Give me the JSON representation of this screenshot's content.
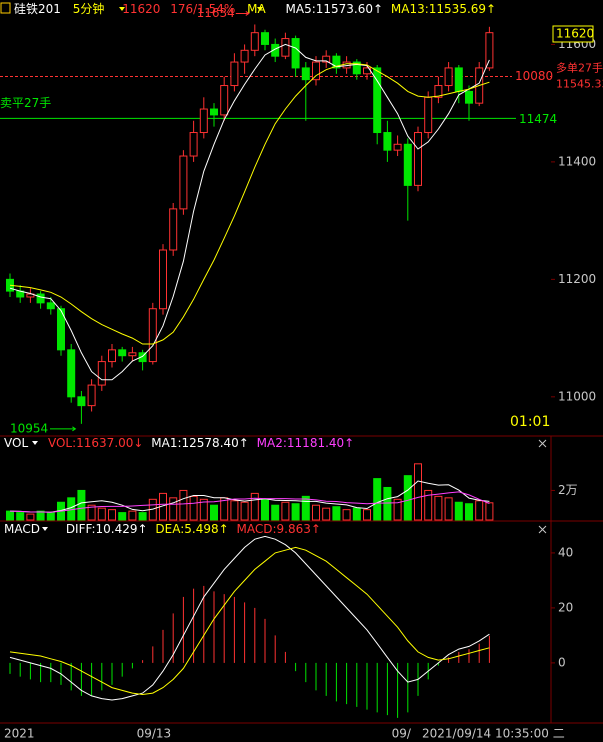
{
  "chart_data": {
    "type": "candlestick",
    "symbol": "硅铁201",
    "period": "5分钟",
    "change": "176/1.54%",
    "indicator": "MA",
    "countdown": "01:01",
    "cursor_time": "2021/09/14 10:35:00 二",
    "up_color": "#ff3232",
    "down_color": "#00e600",
    "categories": [
      "2021",
      null,
      null,
      null,
      null,
      null,
      null,
      null,
      null,
      null,
      null,
      null,
      null,
      "09/13",
      null,
      null,
      null,
      null,
      null,
      null,
      null,
      null,
      null,
      null,
      null,
      null,
      null,
      null,
      null,
      null,
      null,
      null,
      null,
      null,
      null,
      null,
      null,
      null,
      "09/",
      null,
      null,
      null,
      null,
      null,
      null,
      null,
      null,
      null
    ],
    "candles": [
      [
        11200,
        11210,
        11170,
        11180
      ],
      [
        11180,
        11190,
        11160,
        11170
      ],
      [
        11170,
        11185,
        11160,
        11175
      ],
      [
        11175,
        11180,
        11150,
        11160
      ],
      [
        11160,
        11170,
        11140,
        11150
      ],
      [
        11150,
        11155,
        11070,
        11080
      ],
      [
        11080,
        11090,
        10990,
        11000
      ],
      [
        11000,
        11010,
        10954,
        10985
      ],
      [
        10985,
        11030,
        10975,
        11020
      ],
      [
        11020,
        11070,
        11010,
        11060
      ],
      [
        11060,
        11090,
        11050,
        11080
      ],
      [
        11080,
        11085,
        11060,
        11070
      ],
      [
        11070,
        11085,
        11060,
        11075
      ],
      [
        11075,
        11080,
        11045,
        11060
      ],
      [
        11060,
        11160,
        11055,
        11150
      ],
      [
        11150,
        11260,
        11140,
        11250
      ],
      [
        11250,
        11330,
        11240,
        11320
      ],
      [
        11320,
        11420,
        11310,
        11410
      ],
      [
        11410,
        11470,
        11400,
        11450
      ],
      [
        11450,
        11510,
        11440,
        11490
      ],
      [
        11490,
        11500,
        11460,
        11480
      ],
      [
        11480,
        11545,
        11470,
        11530
      ],
      [
        11530,
        11585,
        11520,
        11570
      ],
      [
        11570,
        11600,
        11550,
        11590
      ],
      [
        11590,
        11634,
        11580,
        11620
      ],
      [
        11620,
        11625,
        11590,
        11600
      ],
      [
        11600,
        11610,
        11570,
        11580
      ],
      [
        11580,
        11620,
        11575,
        11610
      ],
      [
        11610,
        11615,
        11545,
        11560
      ],
      [
        11560,
        11570,
        11470,
        11540
      ],
      [
        11540,
        11580,
        11530,
        11570
      ],
      [
        11570,
        11590,
        11560,
        11580
      ],
      [
        11580,
        11585,
        11550,
        11560
      ],
      [
        11560,
        11580,
        11550,
        11570
      ],
      [
        11570,
        11575,
        11540,
        11550
      ],
      [
        11550,
        11570,
        11540,
        11560
      ],
      [
        11560,
        11565,
        11430,
        11450
      ],
      [
        11450,
        11470,
        11400,
        11420
      ],
      [
        11420,
        11445,
        11410,
        11430
      ],
      [
        11430,
        11440,
        11300,
        11360
      ],
      [
        11360,
        11460,
        11350,
        11450
      ],
      [
        11450,
        11520,
        11440,
        11510
      ],
      [
        11510,
        11545,
        11500,
        11530
      ],
      [
        11530,
        11570,
        11520,
        11560
      ],
      [
        11560,
        11565,
        11500,
        11520
      ],
      [
        11520,
        11530,
        11470,
        11500
      ],
      [
        11500,
        11570,
        11495,
        11560
      ],
      [
        11560,
        11630,
        11555,
        11620
      ]
    ],
    "ylim": [
      10935,
      11645
    ],
    "yticks": [
      11600,
      11400,
      11200,
      11000
    ],
    "ma": [
      {
        "name": "MA5:11573.60↑",
        "color": "#ffffff",
        "values": [
          11185,
          11180,
          11176,
          11170,
          11167,
          11147,
          11113,
          11075,
          11043,
          11029,
          11029,
          11043,
          11061,
          11069,
          11087,
          11121,
          11171,
          11231,
          11316,
          11384,
          11430,
          11472,
          11504,
          11532,
          11558,
          11582,
          11592,
          11600,
          11594,
          11578,
          11572,
          11572,
          11562,
          11564,
          11566,
          11564,
          11538,
          11510,
          11482,
          11444,
          11422,
          11434,
          11456,
          11482,
          11514,
          11524,
          11534,
          11573.6
        ]
      },
      {
        "name": "MA13:11535.69↑",
        "color": "#ffff00",
        "values": [
          11190,
          11188,
          11186,
          11182,
          11178,
          11170,
          11158,
          11145,
          11133,
          11123,
          11115,
          11107,
          11100,
          11090,
          11090,
          11097,
          11110,
          11136,
          11166,
          11200,
          11233,
          11270,
          11308,
          11349,
          11391,
          11430,
          11465,
          11490,
          11512,
          11530,
          11547,
          11557,
          11563,
          11567,
          11567,
          11565,
          11555,
          11545,
          11534,
          11520,
          11512,
          11510,
          11512,
          11516,
          11520,
          11524,
          11530,
          11535.69
        ]
      }
    ],
    "orders": [
      {
        "name": "多单27手",
        "tag": "10080",
        "value": 11545.33,
        "color": "#ff3232"
      },
      {
        "name": "卖平27手",
        "value": 11474,
        "color": "#00e600"
      }
    ],
    "volume": {
      "title": "VOL",
      "ylim": [
        0,
        46000
      ],
      "yticks": [
        {
          "value": 20000,
          "label": "2万"
        }
      ],
      "bars": {
        "name": "VOL:11637.00↓",
        "color": "#ff3232",
        "values": [
          6000,
          5000,
          4000,
          6000,
          5000,
          12000,
          15000,
          20000,
          10000,
          8000,
          7000,
          5000,
          6000,
          5000,
          14000,
          18000,
          15000,
          20000,
          16000,
          14000,
          10000,
          15000,
          13000,
          12000,
          18000,
          14000,
          10000,
          12000,
          11000,
          16000,
          10000,
          8000,
          9000,
          7000,
          8000,
          7000,
          28000,
          22000,
          14000,
          30000,
          38000,
          20000,
          16000,
          15000,
          12000,
          11000,
          13000,
          11637
        ]
      },
      "series": [
        {
          "name": "MA1:12578.40↑",
          "color": "#ffffff",
          "values": [
            6000,
            5800,
            5400,
            5500,
            5200,
            6400,
            8400,
            11600,
            12400,
            13000,
            12000,
            10000,
            7200,
            6200,
            7400,
            9600,
            11600,
            14400,
            16600,
            16600,
            15000,
            15000,
            13600,
            12800,
            13600,
            14400,
            13400,
            13200,
            13000,
            12600,
            12600,
            11400,
            10800,
            10200,
            8400,
            7800,
            11800,
            14400,
            15800,
            20200,
            26400,
            24800,
            23600,
            23800,
            20200,
            14800,
            13400,
            12578.4
          ]
        },
        {
          "name": "MA2:11181.40↑",
          "color": "#ff40ff",
          "values": [
            6000,
            5800,
            5500,
            5400,
            5300,
            6000,
            7000,
            8000,
            8700,
            9100,
            9200,
            9200,
            9500,
            9900,
            10200,
            10600,
            10700,
            10900,
            11300,
            12200,
            12300,
            13200,
            14200,
            14200,
            14700,
            14500,
            14500,
            14500,
            14200,
            14200,
            13600,
            12700,
            12500,
            11800,
            11400,
            11000,
            11400,
            11500,
            11700,
            13300,
            15300,
            16700,
            17500,
            18300,
            19000,
            17000,
            14000,
            11181.4
          ]
        }
      ]
    },
    "macd": {
      "title": "MACD",
      "ylim": [
        -21.5,
        44.7
      ],
      "yticks": [
        40,
        20,
        0
      ],
      "histogram": {
        "name": "MACD:9.863↑",
        "up_color": "#ff3232",
        "down_color": "#00e600",
        "values": [
          -4,
          -5,
          -6,
          -7,
          -7,
          -8,
          -10,
          -12,
          -12,
          -10,
          -8,
          -5,
          -2,
          1,
          6,
          12,
          18,
          24,
          27,
          28,
          26,
          25,
          24,
          22,
          20,
          16,
          10,
          4,
          -3,
          -7,
          -10,
          -12,
          -14,
          -15,
          -16,
          -17,
          -18,
          -19,
          -20,
          -18,
          -12,
          -6,
          -1,
          2,
          4,
          5,
          7,
          9.863
        ]
      },
      "series": [
        {
          "name": "DIFF:10.429↑",
          "color": "#ffffff",
          "values": [
            2,
            1,
            0,
            -1,
            -2,
            -4,
            -7,
            -10,
            -12,
            -13,
            -13.5,
            -13,
            -12,
            -11,
            -8,
            -3,
            3,
            10,
            17,
            24,
            29,
            34,
            38,
            42,
            45,
            46,
            45,
            43,
            40,
            36,
            32,
            28,
            24,
            20,
            16,
            12,
            7,
            2,
            -3,
            -7,
            -6,
            -3,
            0,
            3,
            5,
            6,
            8,
            10.429
          ]
        },
        {
          "name": "DEA:5.498↑",
          "color": "#ffff00",
          "values": [
            4,
            3.5,
            3,
            2.5,
            1.5,
            0.5,
            -1,
            -3,
            -5,
            -7,
            -9,
            -10,
            -11,
            -11.5,
            -11,
            -9,
            -6,
            -2,
            4,
            10,
            16,
            21,
            26,
            30,
            34,
            37,
            40,
            41,
            42,
            41,
            39,
            37,
            34,
            31,
            28,
            25,
            21,
            17,
            13,
            8,
            4,
            2,
            1,
            1.5,
            2.5,
            3.5,
            4.5,
            5.498
          ]
        }
      ]
    }
  }
}
